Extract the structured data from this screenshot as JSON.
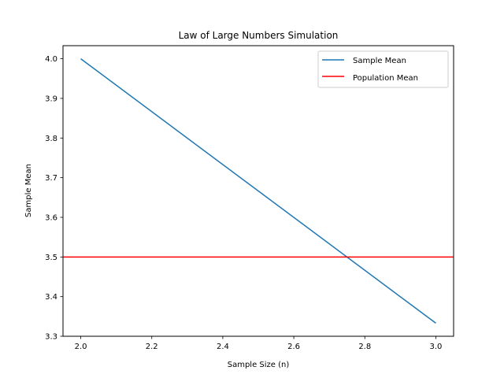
{
  "chart_data": {
    "type": "line",
    "title": "Law of Large Numbers Simulation",
    "xlabel": "Sample Size (n)",
    "ylabel": "Sample Mean",
    "xlim": [
      1.95,
      3.05
    ],
    "ylim": [
      3.3,
      4.033
    ],
    "xticks": [
      2.0,
      2.2,
      2.4,
      2.6,
      2.8,
      3.0
    ],
    "xtick_labels": [
      "2.0",
      "2.2",
      "2.4",
      "2.6",
      "2.8",
      "3.0"
    ],
    "yticks": [
      3.3,
      3.4,
      3.5,
      3.6,
      3.7,
      3.8,
      3.9,
      4.0
    ],
    "ytick_labels": [
      "3.3",
      "3.4",
      "3.5",
      "3.6",
      "3.7",
      "3.8",
      "3.9",
      "4.0"
    ],
    "grid": false,
    "legend_position": "upper right",
    "series": [
      {
        "name": "Sample Mean",
        "kind": "line",
        "color": "#1f77b4",
        "x": [
          2,
          3
        ],
        "y": [
          4.0,
          3.333
        ]
      },
      {
        "name": "Population Mean",
        "kind": "hline",
        "color": "#ff0000",
        "y": 3.5
      }
    ]
  }
}
